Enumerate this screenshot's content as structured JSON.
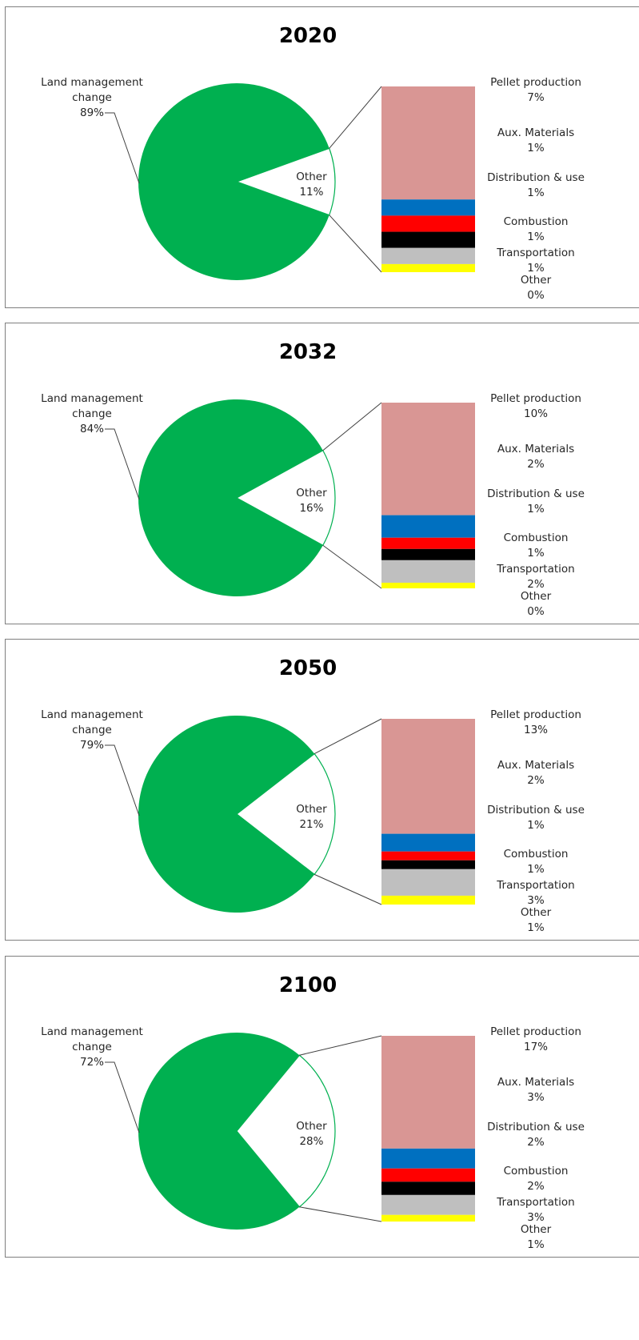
{
  "chart_data": [
    {
      "type": "bar-of-pie",
      "title": "2020",
      "pie": [
        {
          "label": "Land management change",
          "value": 89,
          "color": "#00b050"
        },
        {
          "label": "Other",
          "value": 11,
          "color": "#ffffff"
        }
      ],
      "breakdown": [
        {
          "label": "Pellet production",
          "value": 7,
          "color": "#d99694"
        },
        {
          "label": "Aux. Materials",
          "value": 1,
          "color": "#0070c0"
        },
        {
          "label": "Distribution & use",
          "value": 1,
          "color": "#ff0000"
        },
        {
          "label": "Combustion",
          "value": 1,
          "color": "#000000"
        },
        {
          "label": "Transportation",
          "value": 1,
          "color": "#bfbfbf"
        },
        {
          "label": "Other",
          "value": 0,
          "color": "#ffff00"
        }
      ]
    },
    {
      "type": "bar-of-pie",
      "title": "2032",
      "pie": [
        {
          "label": "Land management change",
          "value": 84,
          "color": "#00b050"
        },
        {
          "label": "Other",
          "value": 16,
          "color": "#ffffff"
        }
      ],
      "breakdown": [
        {
          "label": "Pellet production",
          "value": 10,
          "color": "#d99694"
        },
        {
          "label": "Aux. Materials",
          "value": 2,
          "color": "#0070c0"
        },
        {
          "label": "Distribution & use",
          "value": 1,
          "color": "#ff0000"
        },
        {
          "label": "Combustion",
          "value": 1,
          "color": "#000000"
        },
        {
          "label": "Transportation",
          "value": 2,
          "color": "#bfbfbf"
        },
        {
          "label": "Other",
          "value": 0,
          "color": "#ffff00"
        }
      ]
    },
    {
      "type": "bar-of-pie",
      "title": "2050",
      "pie": [
        {
          "label": "Land management change",
          "value": 79,
          "color": "#00b050"
        },
        {
          "label": "Other",
          "value": 21,
          "color": "#ffffff"
        }
      ],
      "breakdown": [
        {
          "label": "Pellet production",
          "value": 13,
          "color": "#d99694"
        },
        {
          "label": "Aux. Materials",
          "value": 2,
          "color": "#0070c0"
        },
        {
          "label": "Distribution & use",
          "value": 1,
          "color": "#ff0000"
        },
        {
          "label": "Combustion",
          "value": 1,
          "color": "#000000"
        },
        {
          "label": "Transportation",
          "value": 3,
          "color": "#bfbfbf"
        },
        {
          "label": "Other",
          "value": 1,
          "color": "#ffff00"
        }
      ]
    },
    {
      "type": "bar-of-pie",
      "title": "2100",
      "pie": [
        {
          "label": "Land management change",
          "value": 72,
          "color": "#00b050"
        },
        {
          "label": "Other",
          "value": 28,
          "color": "#ffffff"
        }
      ],
      "breakdown": [
        {
          "label": "Pellet production",
          "value": 17,
          "color": "#d99694"
        },
        {
          "label": "Aux. Materials",
          "value": 3,
          "color": "#0070c0"
        },
        {
          "label": "Distribution & use",
          "value": 2,
          "color": "#ff0000"
        },
        {
          "label": "Combustion",
          "value": 2,
          "color": "#000000"
        },
        {
          "label": "Transportation",
          "value": 3,
          "color": "#bfbfbf"
        },
        {
          "label": "Other",
          "value": 1,
          "color": "#ffff00"
        }
      ]
    }
  ]
}
